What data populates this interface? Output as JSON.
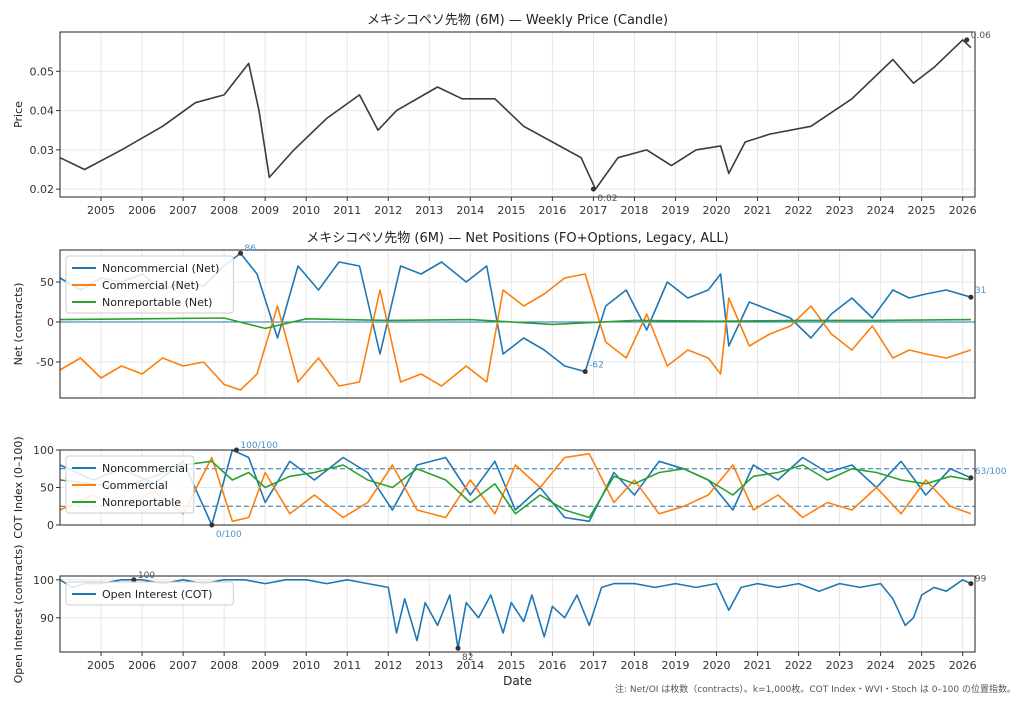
{
  "chart_data": [
    {
      "type": "line",
      "title": "メキシコペソ先物 (6M) — Weekly Price (Candle)",
      "ylabel": "Price",
      "ylim": [
        0.018,
        0.06
      ],
      "yticks": [
        "0.02",
        "0.03",
        "0.04",
        "0.05"
      ],
      "xticks": [
        "2005",
        "2006",
        "2007",
        "2008",
        "2009",
        "2010",
        "2011",
        "2012",
        "2013",
        "2014",
        "2015",
        "2016",
        "2017",
        "2018",
        "2019",
        "2020",
        "2021",
        "2022",
        "2023",
        "2024",
        "2025",
        "2026"
      ],
      "grid": true,
      "colors": {
        "price": "#3b3b3b"
      },
      "series": [
        {
          "x": [
            2004.0,
            2004.6,
            2005.5,
            2006.5,
            2007.3,
            2008.0,
            2008.6,
            2008.85,
            2009.1,
            2009.7,
            2010.5,
            2011.3,
            2011.75,
            2012.2,
            2013.2,
            2013.8,
            2014.6,
            2015.3,
            2016.0,
            2016.7,
            2017.05,
            2017.6,
            2018.3,
            2018.9,
            2019.5,
            2020.1,
            2020.3,
            2020.7,
            2021.3,
            2022.3,
            2023.3,
            2024.3,
            2024.8,
            2025.3,
            2026.0,
            2026.2
          ],
          "values": [
            0.028,
            0.025,
            0.03,
            0.036,
            0.042,
            0.044,
            0.052,
            0.04,
            0.023,
            0.03,
            0.038,
            0.044,
            0.035,
            0.04,
            0.046,
            0.043,
            0.043,
            0.036,
            0.032,
            0.028,
            0.02,
            0.028,
            0.03,
            0.026,
            0.03,
            0.031,
            0.024,
            0.032,
            0.034,
            0.036,
            0.043,
            0.053,
            0.047,
            0.051,
            0.058,
            0.056
          ]
        }
      ],
      "annotations": [
        {
          "label": "0.02",
          "x": 2017.0,
          "y": 0.02
        },
        {
          "label": "0.06",
          "x": 2026.1,
          "y": 0.058
        }
      ]
    },
    {
      "type": "line",
      "title": "メキシコペソ先物 (6M) — Net Positions (FO+Options, Legacy, ALL)",
      "ylabel": "Net (contracts)",
      "ylim": [
        -95,
        90
      ],
      "yticks": [
        "-50",
        "0",
        "50"
      ],
      "legend": "top-left",
      "series": [
        {
          "name": "Noncommercial (Net)",
          "color": "#1f77b4",
          "x": [
            2004.0,
            2004.5,
            2005.0,
            2005.5,
            2006.0,
            2006.5,
            2007.0,
            2007.5,
            2008.0,
            2008.4,
            2008.8,
            2009.3,
            2009.8,
            2010.3,
            2010.8,
            2011.3,
            2011.8,
            2012.3,
            2012.8,
            2013.3,
            2013.9,
            2014.4,
            2014.8,
            2015.3,
            2015.8,
            2016.3,
            2016.8,
            2017.3,
            2017.8,
            2018.3,
            2018.8,
            2019.3,
            2019.8,
            2020.1,
            2020.3,
            2020.8,
            2021.3,
            2021.8,
            2022.3,
            2022.8,
            2023.3,
            2023.8,
            2024.3,
            2024.7,
            2025.1,
            2025.6,
            2026.2
          ],
          "values": [
            55,
            40,
            55,
            50,
            60,
            40,
            50,
            45,
            70,
            86,
            60,
            -20,
            70,
            40,
            75,
            70,
            -40,
            70,
            60,
            75,
            50,
            70,
            -40,
            -20,
            -35,
            -55,
            -62,
            20,
            40,
            -10,
            50,
            30,
            40,
            60,
            -30,
            25,
            15,
            5,
            -20,
            10,
            30,
            5,
            40,
            30,
            35,
            40,
            31
          ]
        },
        {
          "name": "Commercial (Net)",
          "color": "#ff7f0e",
          "x": [
            2004.0,
            2004.5,
            2005.0,
            2005.5,
            2006.0,
            2006.5,
            2007.0,
            2007.5,
            2008.0,
            2008.4,
            2008.8,
            2009.3,
            2009.8,
            2010.3,
            2010.8,
            2011.3,
            2011.8,
            2012.3,
            2012.8,
            2013.3,
            2013.9,
            2014.4,
            2014.8,
            2015.3,
            2015.8,
            2016.3,
            2016.8,
            2017.3,
            2017.8,
            2018.3,
            2018.8,
            2019.3,
            2019.8,
            2020.1,
            2020.3,
            2020.8,
            2021.3,
            2021.8,
            2022.3,
            2022.8,
            2023.3,
            2023.8,
            2024.3,
            2024.7,
            2025.1,
            2025.6,
            2026.2
          ],
          "values": [
            -60,
            -45,
            -70,
            -55,
            -65,
            -45,
            -55,
            -50,
            -78,
            -85,
            -65,
            20,
            -75,
            -45,
            -80,
            -75,
            40,
            -75,
            -65,
            -80,
            -55,
            -75,
            40,
            20,
            35,
            55,
            60,
            -25,
            -45,
            10,
            -55,
            -35,
            -45,
            -65,
            30,
            -30,
            -15,
            -5,
            20,
            -15,
            -35,
            -5,
            -45,
            -35,
            -40,
            -45,
            -35
          ]
        },
        {
          "name": "Nonreportable (Net)",
          "color": "#2ca02c",
          "x": [
            2004.0,
            2006.0,
            2008.0,
            2009.0,
            2010.0,
            2012.0,
            2014.0,
            2016.0,
            2018.0,
            2020.0,
            2022.0,
            2024.0,
            2026.2
          ],
          "values": [
            3,
            4,
            5,
            -8,
            4,
            2,
            3,
            -3,
            2,
            1,
            2,
            2,
            3
          ]
        }
      ],
      "annotations": [
        {
          "label": "86",
          "x": 2008.4,
          "y": 86
        },
        {
          "label": "-62",
          "x": 2016.8,
          "y": -62
        },
        {
          "label": "31",
          "x": 2026.2,
          "y": 31
        }
      ]
    },
    {
      "type": "line",
      "ylabel": "COT Index (0–100)",
      "ylim": [
        0,
        100
      ],
      "yticks": [
        "0",
        "50",
        "100"
      ],
      "reference_lines": [
        25,
        75
      ],
      "legend": "top-left",
      "series": [
        {
          "name": "Noncommercial",
          "color": "#1f77b4",
          "x": [
            2004.0,
            2004.8,
            2005.5,
            2006.3,
            2007.0,
            2007.7,
            2008.2,
            2008.6,
            2009.0,
            2009.6,
            2010.2,
            2010.9,
            2011.5,
            2012.1,
            2012.7,
            2013.4,
            2014.0,
            2014.6,
            2015.1,
            2015.7,
            2016.3,
            2016.9,
            2017.5,
            2018.0,
            2018.6,
            2019.2,
            2019.8,
            2020.4,
            2020.9,
            2021.5,
            2022.1,
            2022.7,
            2023.3,
            2023.9,
            2024.5,
            2025.1,
            2025.7,
            2026.2
          ],
          "values": [
            80,
            60,
            75,
            55,
            85,
            0,
            100,
            90,
            30,
            85,
            60,
            90,
            70,
            20,
            80,
            90,
            40,
            85,
            20,
            50,
            10,
            5,
            70,
            40,
            85,
            75,
            60,
            20,
            80,
            60,
            90,
            70,
            80,
            50,
            85,
            40,
            75,
            63
          ]
        },
        {
          "name": "Commercial",
          "color": "#ff7f0e",
          "x": [
            2004.0,
            2004.8,
            2005.5,
            2006.3,
            2007.0,
            2007.7,
            2008.2,
            2008.6,
            2009.0,
            2009.6,
            2010.2,
            2010.9,
            2011.5,
            2012.1,
            2012.7,
            2013.4,
            2014.0,
            2014.6,
            2015.1,
            2015.7,
            2016.3,
            2016.9,
            2017.5,
            2018.0,
            2018.6,
            2019.2,
            2019.8,
            2020.4,
            2020.9,
            2021.5,
            2022.1,
            2022.7,
            2023.3,
            2023.9,
            2024.5,
            2025.1,
            2025.7,
            2026.2
          ],
          "values": [
            20,
            40,
            25,
            45,
            15,
            90,
            5,
            10,
            70,
            15,
            40,
            10,
            30,
            80,
            20,
            10,
            60,
            15,
            80,
            50,
            90,
            95,
            30,
            60,
            15,
            25,
            40,
            80,
            20,
            40,
            10,
            30,
            20,
            50,
            15,
            60,
            25,
            15
          ]
        },
        {
          "name": "Nonreportable",
          "color": "#2ca02c",
          "x": [
            2004.0,
            2004.8,
            2005.5,
            2006.3,
            2007.0,
            2007.7,
            2008.2,
            2008.6,
            2009.0,
            2009.6,
            2010.2,
            2010.9,
            2011.5,
            2012.1,
            2012.7,
            2013.4,
            2014.0,
            2014.6,
            2015.1,
            2015.7,
            2016.3,
            2016.9,
            2017.5,
            2018.0,
            2018.6,
            2019.2,
            2019.8,
            2020.4,
            2020.9,
            2021.5,
            2022.1,
            2022.7,
            2023.3,
            2023.9,
            2024.5,
            2025.1,
            2025.7,
            2026.2
          ],
          "values": [
            60,
            55,
            50,
            65,
            80,
            85,
            60,
            70,
            50,
            65,
            70,
            80,
            60,
            50,
            75,
            60,
            30,
            55,
            15,
            40,
            20,
            10,
            65,
            55,
            70,
            75,
            60,
            40,
            65,
            70,
            80,
            60,
            75,
            70,
            60,
            55,
            65,
            60
          ]
        }
      ],
      "annotations": [
        {
          "label": "100/100",
          "x": 2008.3,
          "y": 100
        },
        {
          "label": "0/100",
          "x": 2007.7,
          "y": 0
        },
        {
          "label": "63/100",
          "x": 2026.2,
          "y": 63
        }
      ]
    },
    {
      "type": "line",
      "ylabel": "Open Interest (contracts)",
      "xlabel": "Date",
      "ylim": [
        81,
        101
      ],
      "yticks": [
        "90",
        "100"
      ],
      "xticks": [
        "2005",
        "2006",
        "2007",
        "2008",
        "2009",
        "2010",
        "2011",
        "2012",
        "2013",
        "2014",
        "2015",
        "2016",
        "2017",
        "2018",
        "2019",
        "2020",
        "2021",
        "2022",
        "2023",
        "2024",
        "2025",
        "2026"
      ],
      "legend": "top-left",
      "series": [
        {
          "name": "Open Interest (COT)",
          "color": "#1f77b4",
          "x": [
            2004.0,
            2004.3,
            2004.6,
            2005.0,
            2005.5,
            2006.0,
            2006.5,
            2007.0,
            2007.5,
            2008.0,
            2008.5,
            2009.0,
            2009.5,
            2010.0,
            2010.5,
            2011.0,
            2011.5,
            2012.0,
            2012.2,
            2012.4,
            2012.7,
            2012.9,
            2013.2,
            2013.5,
            2013.7,
            2013.9,
            2014.2,
            2014.5,
            2014.8,
            2015.0,
            2015.3,
            2015.5,
            2015.8,
            2016.0,
            2016.3,
            2016.6,
            2016.9,
            2017.2,
            2017.5,
            2018.0,
            2018.5,
            2019.0,
            2019.5,
            2020.0,
            2020.3,
            2020.6,
            2021.0,
            2021.5,
            2022.0,
            2022.5,
            2023.0,
            2023.5,
            2024.0,
            2024.3,
            2024.6,
            2024.8,
            2025.0,
            2025.3,
            2025.6,
            2026.0,
            2026.2
          ],
          "values": [
            100,
            98,
            99,
            99,
            100,
            100,
            99,
            100,
            99,
            100,
            100,
            99,
            100,
            100,
            99,
            100,
            99,
            98,
            86,
            95,
            84,
            94,
            88,
            96,
            82,
            94,
            90,
            96,
            86,
            94,
            89,
            96,
            85,
            93,
            90,
            96,
            88,
            98,
            99,
            99,
            98,
            99,
            98,
            99,
            92,
            98,
            99,
            98,
            99,
            97,
            99,
            98,
            99,
            95,
            88,
            90,
            96,
            98,
            97,
            100,
            99
          ]
        }
      ],
      "annotations": [
        {
          "label": "100",
          "x": 2005.8,
          "y": 100
        },
        {
          "label": "82",
          "x": 2013.7,
          "y": 82
        },
        {
          "label": "99",
          "x": 2026.2,
          "y": 99
        }
      ]
    }
  ],
  "footnote": "注: Net/OI は枚数（contracts）。k=1,000枚。COT Index・WVI・Stoch は 0–100 の位置指数。"
}
